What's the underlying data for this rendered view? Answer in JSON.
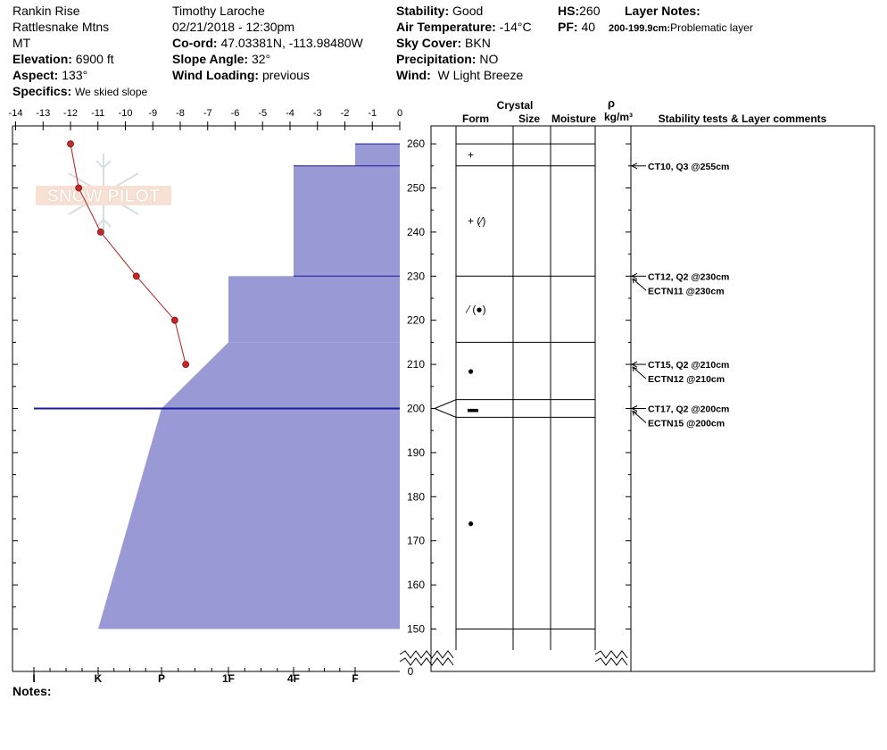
{
  "header": {
    "location": "Rankin Rise",
    "range": "Rattlesnake Mtns",
    "state": "MT",
    "elevation_label": "Elevation:",
    "elevation": "6900 ft",
    "aspect_label": "Aspect:",
    "aspect": "133°",
    "specifics_label": "Specifics:",
    "specifics": "We skied slope",
    "observer": "Timothy  Laroche",
    "datetime": "02/21/2018 - 12:30pm",
    "coord_label": "Co-ord:",
    "coord": "47.03381N, -113.98480W",
    "slope_label": "Slope Angle:",
    "slope": "32°",
    "wind_loading_label": "Wind Loading:",
    "wind_loading": "previous",
    "stability_label": "Stability:",
    "stability": "Good",
    "air_temp_label": "Air Temperature:",
    "air_temp": "-14°C",
    "sky_label": "Sky Cover:",
    "sky": "BKN",
    "precip_label": "Precipitation:",
    "precip": "NO",
    "wind_label": "Wind:",
    "wind": "W Light Breeze",
    "hs_label": "HS:",
    "hs": "260",
    "pf_label": "PF:",
    "pf": "40",
    "layer_notes_label": "Layer Notes:",
    "layer_note_range": "200-199.9cm:",
    "layer_note_text": "Problematic layer"
  },
  "logo_text": "SNOW PILOT",
  "notes_label": "Notes:",
  "columns": {
    "crystal": "Crystal",
    "form": "Form",
    "size": "Size",
    "moisture": "Moisture",
    "rho": "ρ",
    "density_unit": "kg/m³",
    "stability": "Stability tests & Layer comments"
  },
  "chart_data": {
    "type": "line",
    "temp_axis": {
      "range": [
        -14,
        0
      ],
      "ticks": [
        "-14",
        "-13",
        "-12",
        "-11",
        "-10",
        "-9",
        "-8",
        "-7",
        "-6",
        "-5",
        "-4",
        "-3",
        "-2",
        "-1",
        "0"
      ]
    },
    "hardness_axis": [
      "I",
      "K",
      "P",
      "1F",
      "4F",
      "F"
    ],
    "height_axis": {
      "range": [
        150,
        262
      ],
      "ticks": [
        150,
        160,
        170,
        180,
        190,
        200,
        210,
        220,
        230,
        240,
        250,
        260
      ],
      "break_label": "0"
    },
    "temperature_profile": [
      {
        "temp": -12.0,
        "height": 260
      },
      {
        "temp": -11.7,
        "height": 250
      },
      {
        "temp": -10.9,
        "height": 240
      },
      {
        "temp": -9.6,
        "height": 230
      },
      {
        "temp": -8.2,
        "height": 220
      },
      {
        "temp": -7.8,
        "height": 210
      }
    ],
    "hardness_layers": [
      {
        "top": 260,
        "bottom": 255,
        "hardness_top": "F",
        "hardness_bottom": "F"
      },
      {
        "top": 255,
        "bottom": 230,
        "hardness_top": "4F",
        "hardness_bottom": "4F"
      },
      {
        "top": 230,
        "bottom": 215,
        "hardness_top": "1F",
        "hardness_bottom": "1F"
      },
      {
        "top": 215,
        "bottom": 200,
        "hardness_top": "1F",
        "hardness_bottom": "P"
      },
      {
        "top": 200,
        "bottom": 150,
        "hardness_top": "P",
        "hardness_bottom": "K"
      }
    ],
    "layer_boundaries": [
      260,
      255,
      230,
      215,
      202,
      198,
      150
    ],
    "problem_layer_height": 200,
    "crystal_forms": [
      {
        "height": 257.5,
        "symbol": "+"
      },
      {
        "height": 242.5,
        "symbol": "+ (⁄)"
      },
      {
        "height": 222.5,
        "symbol": "⁄ (●)"
      },
      {
        "height": 208.5,
        "symbol": "●"
      },
      {
        "height": 200,
        "symbol": "▬"
      },
      {
        "height": 174,
        "symbol": "●"
      }
    ],
    "stability_tests": [
      {
        "height": 255,
        "text": "CT10, Q3 @255cm"
      },
      {
        "height": 230,
        "text": "CT12, Q2 @230cm"
      },
      {
        "height": 230,
        "text": "ECTN11 @230cm"
      },
      {
        "height": 210,
        "text": "CT15, Q2 @210cm"
      },
      {
        "height": 210,
        "text": "ECTN12 @210cm"
      },
      {
        "height": 200,
        "text": "CT17, Q2 @200cm"
      },
      {
        "height": 200,
        "text": "ECTN15 @200cm"
      }
    ]
  }
}
